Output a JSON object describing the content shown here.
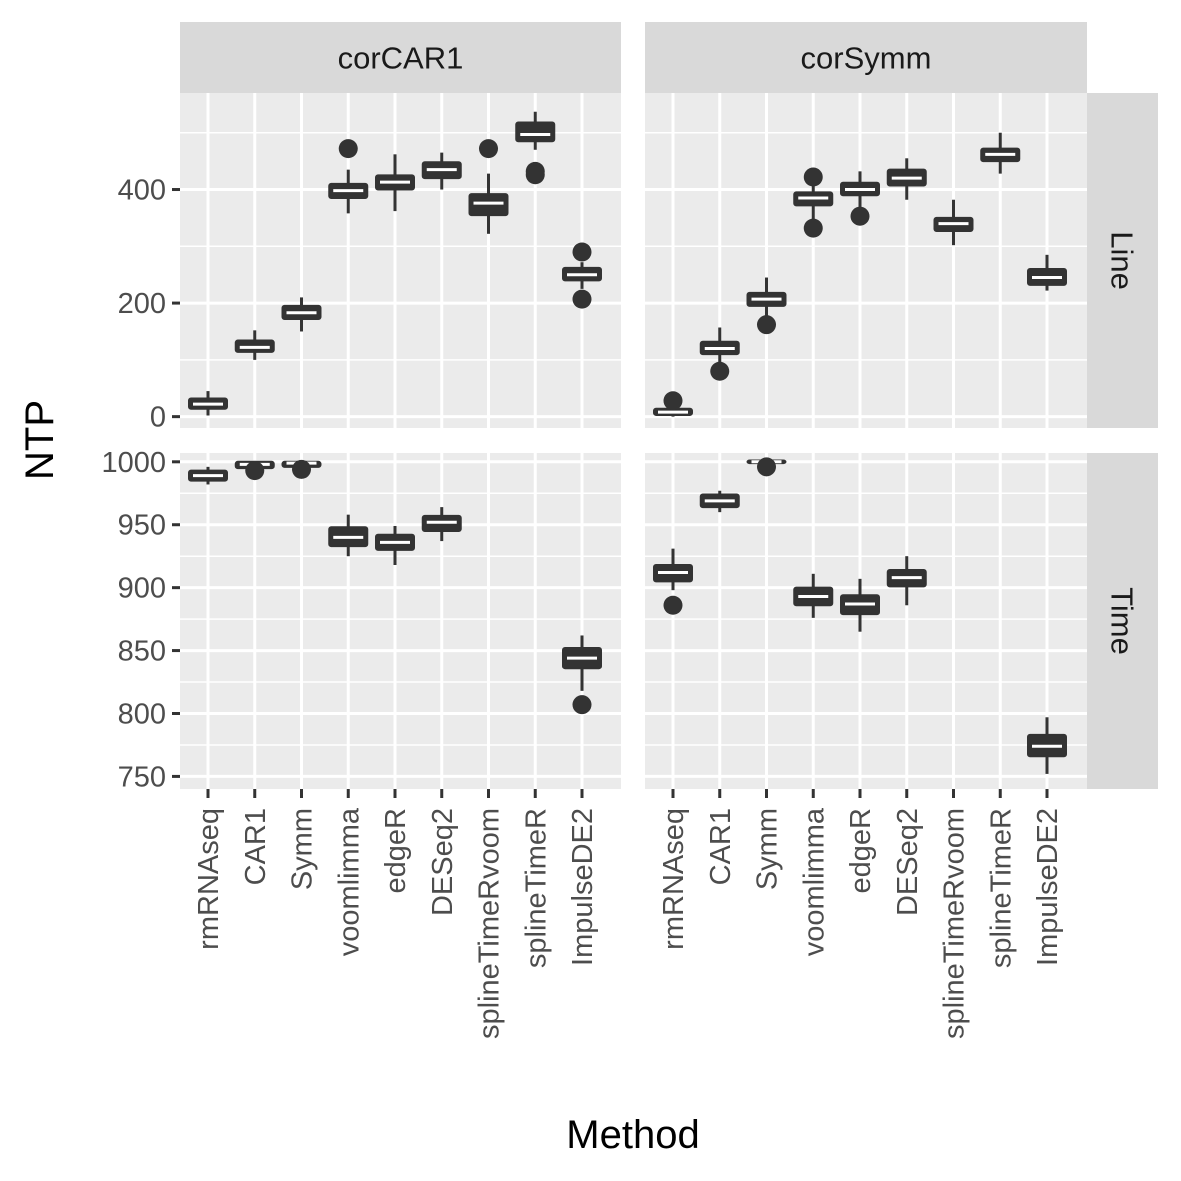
{
  "chart_data": {
    "type": "boxplot",
    "xlabel": "Method",
    "ylabel": "NTP",
    "categories": [
      "rmRNAseq",
      "CAR1",
      "Symm",
      "voomlimma",
      "edgeR",
      "DESeq2",
      "splineTimeRvoom",
      "splineTimeR",
      "ImpulseDE2"
    ],
    "facet_columns": [
      "corCAR1",
      "corSymm"
    ],
    "facet_rows": [
      "Line",
      "Time"
    ],
    "rows": [
      {
        "name": "Line",
        "ylim": [
          -20,
          570
        ],
        "yticks": [
          0,
          200,
          400
        ],
        "panels": [
          {
            "column": "corCAR1",
            "boxes": [
              {
                "method": "rmRNAseq",
                "whisker_low": 2,
                "q1": 14,
                "median": 22,
                "q3": 32,
                "whisker_high": 45,
                "outliers": []
              },
              {
                "method": "CAR1",
                "whisker_low": 100,
                "q1": 114,
                "median": 122,
                "q3": 134,
                "whisker_high": 152,
                "outliers": []
              },
              {
                "method": "Symm",
                "whisker_low": 150,
                "q1": 172,
                "median": 183,
                "q3": 195,
                "whisker_high": 210,
                "outliers": []
              },
              {
                "method": "voomlimma",
                "whisker_low": 358,
                "q1": 385,
                "median": 398,
                "q3": 410,
                "whisker_high": 435,
                "outliers": [
                  472
                ]
              },
              {
                "method": "edgeR",
                "whisker_low": 362,
                "q1": 400,
                "median": 413,
                "q3": 425,
                "whisker_high": 462,
                "outliers": []
              },
              {
                "method": "DESeq2",
                "whisker_low": 400,
                "q1": 420,
                "median": 435,
                "q3": 448,
                "whisker_high": 465,
                "outliers": []
              },
              {
                "method": "splineTimeRvoom",
                "whisker_low": 322,
                "q1": 355,
                "median": 376,
                "q3": 392,
                "whisker_high": 428,
                "outliers": [
                  472
                ]
              },
              {
                "method": "splineTimeR",
                "whisker_low": 470,
                "q1": 485,
                "median": 497,
                "q3": 518,
                "whisker_high": 537,
                "outliers": [
                  432,
                  426
                ]
              },
              {
                "method": "ImpulseDE2",
                "whisker_low": 225,
                "q1": 240,
                "median": 250,
                "q3": 262,
                "whisker_high": 272,
                "outliers": [
                  290,
                  207
                ]
              }
            ]
          },
          {
            "column": "corSymm",
            "boxes": [
              {
                "method": "rmRNAseq",
                "whisker_low": 0,
                "q1": 3,
                "median": 8,
                "q3": 14,
                "whisker_high": 22,
                "outliers": [
                  28
                ]
              },
              {
                "method": "CAR1",
                "whisker_low": 92,
                "q1": 110,
                "median": 120,
                "q3": 132,
                "whisker_high": 157,
                "outliers": [
                  80
                ]
              },
              {
                "method": "Symm",
                "whisker_low": 178,
                "q1": 195,
                "median": 207,
                "q3": 218,
                "whisker_high": 245,
                "outliers": [
                  162
                ]
              },
              {
                "method": "voomlimma",
                "whisker_low": 348,
                "q1": 372,
                "median": 385,
                "q3": 395,
                "whisker_high": 418,
                "outliers": [
                  422,
                  332
                ]
              },
              {
                "method": "edgeR",
                "whisker_low": 368,
                "q1": 390,
                "median": 400,
                "q3": 412,
                "whisker_high": 432,
                "outliers": [
                  353
                ]
              },
              {
                "method": "DESeq2",
                "whisker_low": 382,
                "q1": 407,
                "median": 420,
                "q3": 435,
                "whisker_high": 455,
                "outliers": []
              },
              {
                "method": "splineTimeRvoom",
                "whisker_low": 302,
                "q1": 327,
                "median": 340,
                "q3": 350,
                "whisker_high": 382,
                "outliers": []
              },
              {
                "method": "splineTimeR",
                "whisker_low": 428,
                "q1": 450,
                "median": 462,
                "q3": 472,
                "whisker_high": 500,
                "outliers": []
              },
              {
                "method": "ImpulseDE2",
                "whisker_low": 222,
                "q1": 232,
                "median": 245,
                "q3": 260,
                "whisker_high": 285,
                "outliers": []
              }
            ]
          }
        ]
      },
      {
        "name": "Time",
        "ylim": [
          740,
          1007
        ],
        "yticks": [
          750,
          800,
          850,
          900,
          950,
          1000
        ],
        "panels": [
          {
            "column": "corCAR1",
            "boxes": [
              {
                "method": "rmRNAseq",
                "whisker_low": 982,
                "q1": 985,
                "median": 989,
                "q3": 993,
                "whisker_high": 996,
                "outliers": []
              },
              {
                "method": "CAR1",
                "whisker_low": 994,
                "q1": 995,
                "median": 998,
                "q3": 1000,
                "whisker_high": 1000,
                "outliers": [
                  993
                ]
              },
              {
                "method": "Symm",
                "whisker_low": 995,
                "q1": 996,
                "median": 999,
                "q3": 1000,
                "whisker_high": 1001,
                "outliers": [
                  994
                ]
              },
              {
                "method": "voomlimma",
                "whisker_low": 925,
                "q1": 933,
                "median": 940,
                "q3": 948,
                "whisker_high": 958,
                "outliers": []
              },
              {
                "method": "edgeR",
                "whisker_low": 918,
                "q1": 930,
                "median": 936,
                "q3": 942,
                "whisker_high": 949,
                "outliers": []
              },
              {
                "method": "DESeq2",
                "whisker_low": 937,
                "q1": 945,
                "median": 952,
                "q3": 957,
                "whisker_high": 964,
                "outliers": []
              },
              {
                "method": "ImpulseDE2",
                "whisker_low": 818,
                "q1": 836,
                "median": 844,
                "q3": 852,
                "whisker_high": 862,
                "outliers": [
                  807
                ]
              }
            ]
          },
          {
            "column": "corSymm",
            "boxes": [
              {
                "method": "rmRNAseq",
                "whisker_low": 898,
                "q1": 905,
                "median": 912,
                "q3": 918,
                "whisker_high": 931,
                "outliers": [
                  886
                ]
              },
              {
                "method": "CAR1",
                "whisker_low": 960,
                "q1": 964,
                "median": 969,
                "q3": 974,
                "whisker_high": 977,
                "outliers": []
              },
              {
                "method": "Symm",
                "whisker_low": 997,
                "q1": 999,
                "median": 1000,
                "q3": 1001,
                "whisker_high": 1002,
                "outliers": [
                  996
                ]
              },
              {
                "method": "voomlimma",
                "whisker_low": 876,
                "q1": 886,
                "median": 893,
                "q3": 900,
                "whisker_high": 911,
                "outliers": []
              },
              {
                "method": "edgeR",
                "whisker_low": 865,
                "q1": 879,
                "median": 887,
                "q3": 894,
                "whisker_high": 907,
                "outliers": []
              },
              {
                "method": "DESeq2",
                "whisker_low": 886,
                "q1": 901,
                "median": 908,
                "q3": 914,
                "whisker_high": 925,
                "outliers": []
              },
              {
                "method": "ImpulseDE2",
                "whisker_low": 752,
                "q1": 766,
                "median": 774,
                "q3": 783,
                "whisker_high": 797,
                "outliers": []
              }
            ]
          }
        ]
      }
    ],
    "grid": true,
    "colors": {
      "panel_bg": "#ebebeb",
      "strip_bg": "#d9d9d9",
      "gridline": "#ffffff",
      "box_fill": "#333333",
      "median_line": "#ffffff"
    }
  }
}
